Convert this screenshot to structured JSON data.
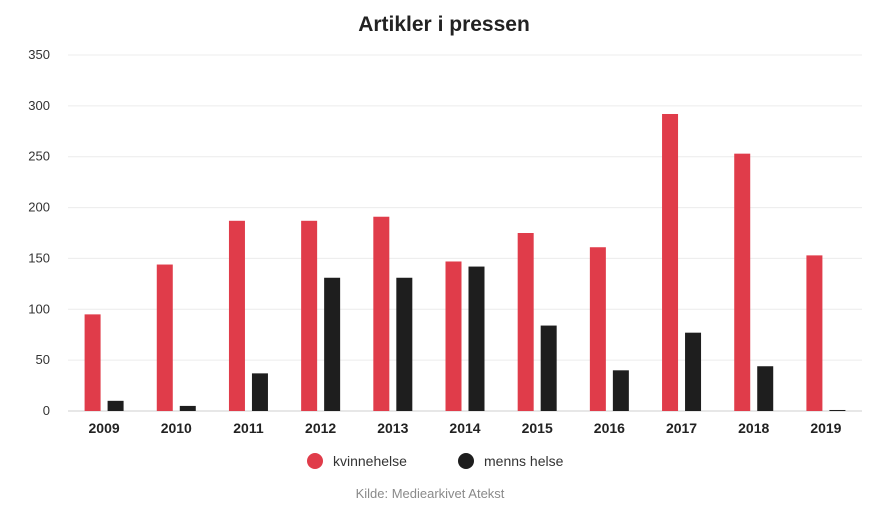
{
  "chart_data": {
    "type": "bar",
    "title": "Artikler i pressen",
    "categories": [
      "2009",
      "2010",
      "2011",
      "2012",
      "2013",
      "2014",
      "2015",
      "2016",
      "2017",
      "2018",
      "2019"
    ],
    "series": [
      {
        "name": "kvinnehelse",
        "color": "#e03c4a",
        "values": [
          95,
          144,
          187,
          187,
          191,
          147,
          175,
          161,
          292,
          253,
          153
        ]
      },
      {
        "name": "menns helse",
        "color": "#1e1e1e",
        "values": [
          10,
          5,
          37,
          131,
          131,
          142,
          84,
          40,
          77,
          44,
          1
        ]
      }
    ],
    "ylim": [
      0,
      350
    ],
    "yticks": [
      0,
      50,
      100,
      150,
      200,
      250,
      300,
      350
    ],
    "grid": true,
    "legend_position": "bottom-center",
    "source": "Kilde: Mediearkivet Atekst"
  }
}
